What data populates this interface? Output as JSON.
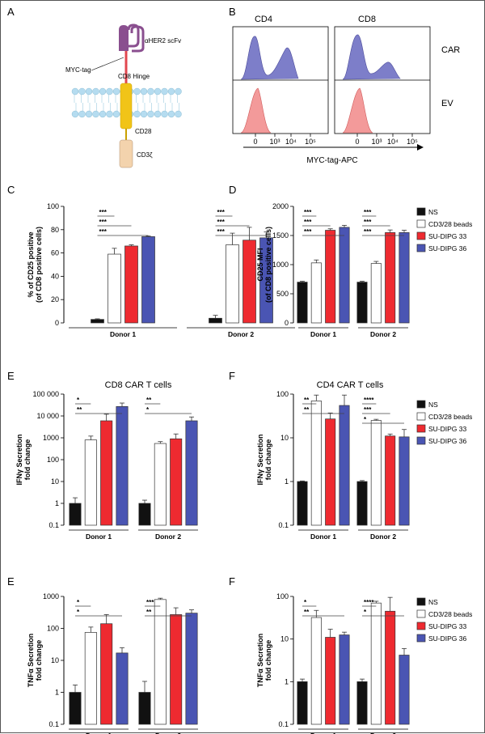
{
  "panel_letters": {
    "A": "A",
    "B": "B",
    "C": "C",
    "D": "D",
    "E": "E",
    "F": "F",
    "E2": "E",
    "F2": "F"
  },
  "colors": {
    "NS": "#111111",
    "beads": "#ffffff",
    "dipg33": "#ee2a30",
    "dipg36": "#4a55b3",
    "membrane": "#b5dcf0",
    "cd28": "#f1c418",
    "hinge": "#e2474f",
    "scfv": "#8a4f8f",
    "cd3z": "#f3d3ad",
    "car_fill": "#7d7ec9",
    "ev_fill": "#f39a9a"
  },
  "diagram": {
    "scfv": "αHER2 scFv",
    "myc": "MYC-tag",
    "hinge": "CD8 Hinge",
    "cd28": "CD28",
    "cd3z": "CD3ζ"
  },
  "flow": {
    "col1": "CD4",
    "col2": "CD8",
    "row1": "CAR",
    "row2": "EV",
    "xlabel": "MYC-tag-APC",
    "ticks": [
      "0",
      "10³",
      "10⁴",
      "10⁵"
    ]
  },
  "legend": [
    "NS",
    "CD3/28 beads",
    "SU-DIPG 33",
    "SU-DIPG 36"
  ],
  "chart_data": [
    {
      "id": "C",
      "type": "bar",
      "categories": [
        "Donor 1",
        "Donor 2"
      ],
      "series": [
        {
          "name": "NS",
          "values": [
            3,
            4
          ],
          "err": [
            0.5,
            2.5
          ]
        },
        {
          "name": "CD3/28 beads",
          "values": [
            59,
            67
          ],
          "err": [
            5,
            10
          ]
        },
        {
          "name": "SU-DIPG 33",
          "values": [
            66,
            71
          ],
          "err": [
            1,
            11
          ]
        },
        {
          "name": "SU-DIPG 36",
          "values": [
            74,
            73
          ],
          "err": [
            0.5,
            5
          ]
        }
      ],
      "ylabel": "% of CD25 positive\n(of CD8 positive cells)",
      "ylim": [
        0,
        100
      ],
      "yticks": [
        "0",
        "20",
        "40",
        "60",
        "80",
        "100"
      ],
      "scale": "linear",
      "sig": [
        [
          "***",
          "***",
          "***"
        ],
        [
          "***",
          "***",
          "***"
        ]
      ]
    },
    {
      "id": "D",
      "type": "bar",
      "categories": [
        "Donor 1",
        "Donor 2"
      ],
      "series": [
        {
          "name": "NS",
          "values": [
            700,
            700
          ],
          "err": [
            15,
            15
          ]
        },
        {
          "name": "CD3/28 beads",
          "values": [
            1030,
            1020
          ],
          "err": [
            50,
            35
          ]
        },
        {
          "name": "SU-DIPG 33",
          "values": [
            1590,
            1550
          ],
          "err": [
            25,
            45
          ]
        },
        {
          "name": "SU-DIPG 36",
          "values": [
            1640,
            1550
          ],
          "err": [
            35,
            40
          ]
        }
      ],
      "ylabel": "CD25 MFI\n(of CD8 positive cells)",
      "ylim": [
        0,
        2000
      ],
      "yticks": [
        "0",
        "500",
        "1000",
        "1500",
        "2000"
      ],
      "scale": "linear",
      "sig": [
        [
          "***",
          "***",
          "***"
        ],
        [
          "***",
          "***",
          "***"
        ]
      ]
    },
    {
      "id": "E",
      "type": "bar",
      "title": "CD8 CAR T cells",
      "categories": [
        "Donor 1",
        "Donor 2"
      ],
      "series": [
        {
          "name": "NS",
          "values": [
            1,
            1
          ],
          "err": [
            0.8,
            0.4
          ]
        },
        {
          "name": "CD3/28 beads",
          "values": [
            800,
            550
          ],
          "err": [
            400,
            120
          ]
        },
        {
          "name": "SU-DIPG 33",
          "values": [
            6000,
            900
          ],
          "err": [
            6000,
            600
          ]
        },
        {
          "name": "SU-DIPG 36",
          "values": [
            27000,
            6000
          ],
          "err": [
            12000,
            3000
          ]
        }
      ],
      "ylabel": "IFNγ Secretion\nfold change",
      "ylim": [
        0.1,
        100000
      ],
      "yticks": [
        "0.1",
        "1",
        "10",
        "100",
        "1000",
        "10 000",
        "100 000"
      ],
      "scale": "log",
      "sig": [
        [
          "*",
          "**"
        ],
        [
          "**",
          "*"
        ]
      ]
    },
    {
      "id": "F",
      "type": "bar",
      "title": "CD4 CAR T cells",
      "categories": [
        "Donor 1",
        "Donor 2"
      ],
      "series": [
        {
          "name": "NS",
          "values": [
            1,
            1
          ],
          "err": [
            0.03,
            0.05
          ]
        },
        {
          "name": "CD3/28 beads",
          "values": [
            70,
            25
          ],
          "err": [
            25,
            1.5
          ]
        },
        {
          "name": "SU-DIPG 33",
          "values": [
            27,
            11
          ],
          "err": [
            10,
            1.2
          ]
        },
        {
          "name": "SU-DIPG 36",
          "values": [
            55,
            10.5
          ],
          "err": [
            40,
            5
          ]
        }
      ],
      "ylabel": "IFNγ Secretion\nfold change",
      "ylim": [
        0.1,
        100
      ],
      "yticks": [
        "0.1",
        "1",
        "10",
        "100"
      ],
      "scale": "log",
      "sig": [
        [
          "**",
          "**"
        ],
        [
          "****",
          "***",
          "*"
        ]
      ]
    },
    {
      "id": "E2",
      "type": "bar",
      "categories": [
        "Donor 1",
        "Donor 2"
      ],
      "series": [
        {
          "name": "NS",
          "values": [
            1,
            1
          ],
          "err": [
            0.7,
            1.2
          ]
        },
        {
          "name": "CD3/28 beads",
          "values": [
            75,
            800
          ],
          "err": [
            35,
            80
          ]
        },
        {
          "name": "SU-DIPG 33",
          "values": [
            140,
            270
          ],
          "err": [
            130,
            170
          ]
        },
        {
          "name": "SU-DIPG 36",
          "values": [
            17,
            300
          ],
          "err": [
            8,
            80
          ]
        }
      ],
      "ylabel": "TNFα Secretion\nfold change",
      "ylim": [
        0.1,
        1000
      ],
      "yticks": [
        "0.1",
        "1",
        "10",
        "100",
        "1000"
      ],
      "scale": "log",
      "sig": [
        [
          "*",
          "*"
        ],
        [
          "***",
          "**"
        ]
      ]
    },
    {
      "id": "F2",
      "type": "bar",
      "categories": [
        "Donor 1",
        "Donor 2"
      ],
      "series": [
        {
          "name": "NS",
          "values": [
            1,
            1
          ],
          "err": [
            0.15,
            0.15
          ]
        },
        {
          "name": "CD3/28 beads",
          "values": [
            32,
            70
          ],
          "err": [
            15,
            7
          ]
        },
        {
          "name": "SU-DIPG 33",
          "values": [
            11,
            45
          ],
          "err": [
            6,
            50
          ]
        },
        {
          "name": "SU-DIPG 36",
          "values": [
            12.5,
            4.2
          ],
          "err": [
            2,
            1.8
          ]
        }
      ],
      "ylabel": "TNFα Secretion\nfold change",
      "ylim": [
        0.1,
        100
      ],
      "yticks": [
        "0.1",
        "1",
        "10",
        "100"
      ],
      "scale": "log",
      "sig": [
        [
          "*",
          "**"
        ],
        [
          "****",
          "*"
        ]
      ]
    }
  ]
}
